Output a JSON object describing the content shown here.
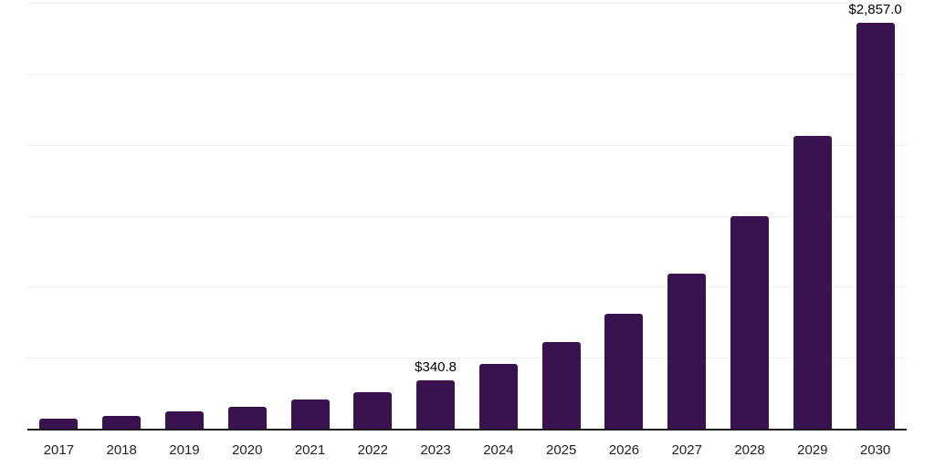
{
  "chart_data": {
    "type": "bar",
    "title": "",
    "xlabel": "",
    "ylabel": "",
    "categories": [
      "2017",
      "2018",
      "2019",
      "2020",
      "2021",
      "2022",
      "2023",
      "2024",
      "2025",
      "2026",
      "2027",
      "2028",
      "2029",
      "2030"
    ],
    "values": [
      68,
      91,
      120,
      151,
      204,
      260,
      340.8,
      455,
      610,
      810,
      1095,
      1495,
      2060,
      2857
    ],
    "bar_labels": [
      "",
      "",
      "",
      "",
      "",
      "",
      "$340.8",
      "",
      "",
      "",
      "",
      "",
      "",
      "$2,857.0"
    ],
    "ylim": [
      0,
      3000
    ],
    "gridline_step": 500,
    "grid": true,
    "legend_position": "none",
    "y_axis_tick_labels_visible": false,
    "colors": {
      "bar": "#38134f",
      "gridline": "#f0f0f0",
      "axis_line": "#1f1f1f",
      "x_tick_label": "#222222",
      "bar_value_label": "#000000",
      "background": "#ffffff"
    }
  }
}
